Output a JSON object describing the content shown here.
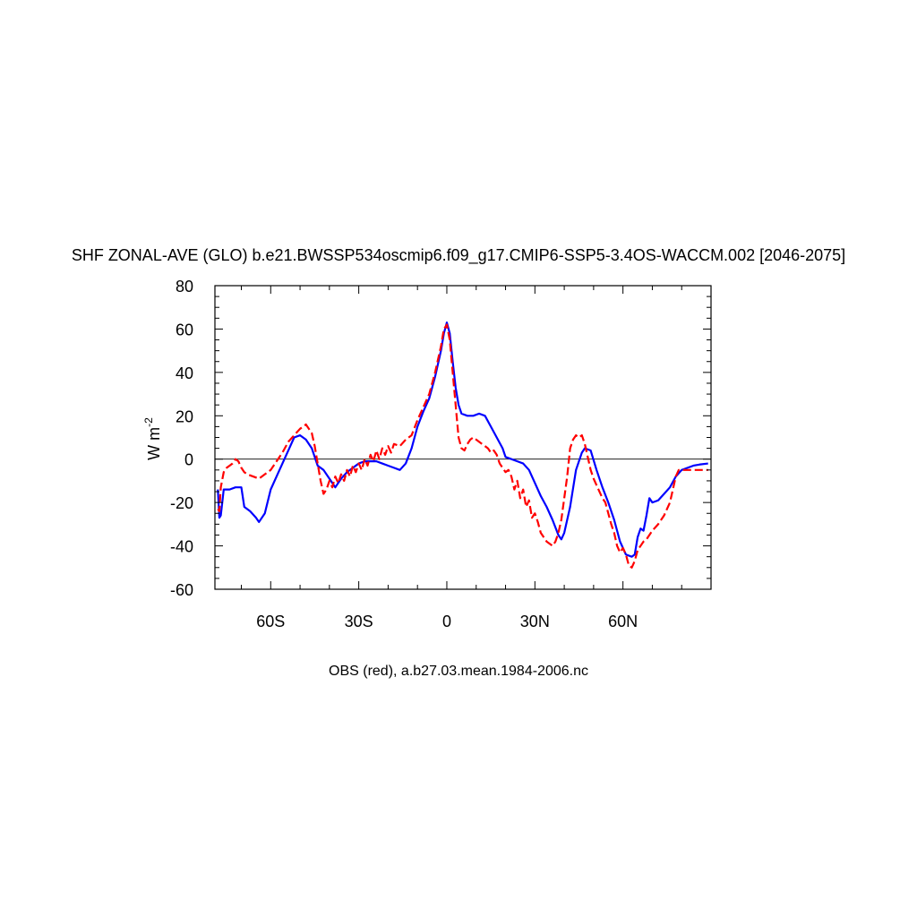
{
  "chart_data": {
    "type": "line",
    "title": "SHF ZONAL-AVE (GLO) b.e21.BWSSP534oscmip6.f09_g17.CMIP6-SSP5-3.4OS-WACCM.002 [2046-2075]",
    "ylabel_main": "W m",
    "ylabel_sup": "-2",
    "caption": "OBS (red), a.b27.03.mean.1984-2006.nc",
    "xlim": [
      -79,
      90
    ],
    "ylim": [
      -60,
      80
    ],
    "x_ticks": [
      {
        "value": -60,
        "label": "60S"
      },
      {
        "value": -30,
        "label": "30S"
      },
      {
        "value": 0,
        "label": "0"
      },
      {
        "value": 30,
        "label": "30N"
      },
      {
        "value": 60,
        "label": "60N"
      }
    ],
    "y_ticks": [
      {
        "value": 80,
        "label": "80"
      },
      {
        "value": 60,
        "label": "60"
      },
      {
        "value": 40,
        "label": "40"
      },
      {
        "value": 20,
        "label": "20"
      },
      {
        "value": 0,
        "label": "0"
      },
      {
        "value": -20,
        "label": "-20"
      },
      {
        "value": -40,
        "label": "-40"
      },
      {
        "value": -60,
        "label": "-60"
      }
    ],
    "zero_line": true,
    "series": [
      {
        "color": "#0000ff",
        "dash": "solid",
        "points": [
          [
            -78,
            -14
          ],
          [
            -77.5,
            -27
          ],
          [
            -77,
            -26
          ],
          [
            -76,
            -14
          ],
          [
            -74,
            -14
          ],
          [
            -72,
            -13
          ],
          [
            -70,
            -13
          ],
          [
            -69,
            -22
          ],
          [
            -67,
            -24
          ],
          [
            -65,
            -27
          ],
          [
            -64,
            -29
          ],
          [
            -62,
            -25
          ],
          [
            -60,
            -14
          ],
          [
            -58,
            -8
          ],
          [
            -56,
            -2
          ],
          [
            -54,
            4
          ],
          [
            -52,
            10
          ],
          [
            -50,
            11
          ],
          [
            -48,
            9
          ],
          [
            -46,
            5
          ],
          [
            -44,
            -3
          ],
          [
            -42,
            -5
          ],
          [
            -40,
            -9
          ],
          [
            -38,
            -13
          ],
          [
            -36,
            -9
          ],
          [
            -34,
            -6
          ],
          [
            -32,
            -4
          ],
          [
            -30,
            -2
          ],
          [
            -28,
            -1
          ],
          [
            -26,
            -1
          ],
          [
            -24,
            -1
          ],
          [
            -22,
            -2
          ],
          [
            -20,
            -3
          ],
          [
            -18,
            -4
          ],
          [
            -16,
            -5
          ],
          [
            -14,
            -2
          ],
          [
            -12,
            5
          ],
          [
            -10,
            15
          ],
          [
            -8,
            22
          ],
          [
            -6,
            28
          ],
          [
            -4,
            38
          ],
          [
            -2,
            50
          ],
          [
            -1,
            58
          ],
          [
            0,
            63
          ],
          [
            1,
            58
          ],
          [
            2,
            45
          ],
          [
            3,
            33
          ],
          [
            4,
            25
          ],
          [
            5,
            21
          ],
          [
            7,
            20
          ],
          [
            9,
            20
          ],
          [
            11,
            21
          ],
          [
            13,
            20
          ],
          [
            15,
            15
          ],
          [
            17,
            10
          ],
          [
            19,
            5
          ],
          [
            20,
            1
          ],
          [
            22,
            0
          ],
          [
            24,
            -1
          ],
          [
            26,
            -2
          ],
          [
            28,
            -5
          ],
          [
            30,
            -11
          ],
          [
            32,
            -17
          ],
          [
            34,
            -22
          ],
          [
            36,
            -28
          ],
          [
            38,
            -35
          ],
          [
            39,
            -37
          ],
          [
            40,
            -34
          ],
          [
            42,
            -22
          ],
          [
            44,
            -5
          ],
          [
            46,
            3
          ],
          [
            47,
            5
          ],
          [
            49,
            4
          ],
          [
            51,
            -5
          ],
          [
            53,
            -13
          ],
          [
            55,
            -20
          ],
          [
            57,
            -28
          ],
          [
            59,
            -38
          ],
          [
            61,
            -44
          ],
          [
            63,
            -45
          ],
          [
            64,
            -44
          ],
          [
            65,
            -36
          ],
          [
            66,
            -32
          ],
          [
            67,
            -33
          ],
          [
            68,
            -26
          ],
          [
            69,
            -18
          ],
          [
            70,
            -20
          ],
          [
            72,
            -19
          ],
          [
            74,
            -16
          ],
          [
            76,
            -13
          ],
          [
            78,
            -8
          ],
          [
            80,
            -5
          ],
          [
            82,
            -4
          ],
          [
            84,
            -3
          ],
          [
            86,
            -2.5
          ],
          [
            89,
            -2
          ]
        ]
      },
      {
        "color": "#ff0000",
        "dash": "dashed",
        "points": [
          [
            -78,
            -23
          ],
          [
            -77.5,
            -24
          ],
          [
            -77,
            -13
          ],
          [
            -76,
            -6
          ],
          [
            -75,
            -4
          ],
          [
            -74,
            -3
          ],
          [
            -73,
            -2
          ],
          [
            -72,
            0
          ],
          [
            -71,
            -1
          ],
          [
            -70,
            -4
          ],
          [
            -69,
            -6
          ],
          [
            -68,
            -7
          ],
          [
            -66,
            -8
          ],
          [
            -64,
            -9
          ],
          [
            -62,
            -7
          ],
          [
            -60,
            -5
          ],
          [
            -58,
            -1
          ],
          [
            -56,
            3
          ],
          [
            -54,
            8
          ],
          [
            -52,
            11
          ],
          [
            -50,
            14
          ],
          [
            -49,
            15
          ],
          [
            -48,
            16
          ],
          [
            -47,
            14
          ],
          [
            -46,
            12
          ],
          [
            -45,
            6
          ],
          [
            -44,
            -2
          ],
          [
            -43,
            -10
          ],
          [
            -42,
            -16
          ],
          [
            -41,
            -14
          ],
          [
            -40,
            -10
          ],
          [
            -39,
            -13
          ],
          [
            -38,
            -8
          ],
          [
            -37,
            -11
          ],
          [
            -36,
            -7
          ],
          [
            -35,
            -10
          ],
          [
            -34,
            -5
          ],
          [
            -33,
            -8
          ],
          [
            -32,
            -3
          ],
          [
            -31,
            -6
          ],
          [
            -30,
            -2
          ],
          [
            -29,
            -5
          ],
          [
            -28,
            0
          ],
          [
            -27,
            -3
          ],
          [
            -26,
            2
          ],
          [
            -25,
            -1
          ],
          [
            -24,
            4
          ],
          [
            -23,
            0
          ],
          [
            -22,
            5
          ],
          [
            -21,
            2
          ],
          [
            -20,
            6
          ],
          [
            -19,
            3
          ],
          [
            -18,
            7
          ],
          [
            -16,
            6
          ],
          [
            -14,
            9
          ],
          [
            -12,
            11
          ],
          [
            -10,
            18
          ],
          [
            -8,
            24
          ],
          [
            -6,
            30
          ],
          [
            -4,
            40
          ],
          [
            -2,
            52
          ],
          [
            -1,
            60
          ],
          [
            0,
            62
          ],
          [
            1,
            55
          ],
          [
            2,
            40
          ],
          [
            3,
            25
          ],
          [
            4,
            10
          ],
          [
            5,
            5
          ],
          [
            6,
            4
          ],
          [
            7,
            7
          ],
          [
            8,
            9
          ],
          [
            9,
            10
          ],
          [
            10,
            9
          ],
          [
            11,
            8
          ],
          [
            12,
            7
          ],
          [
            13,
            6
          ],
          [
            14,
            5
          ],
          [
            15,
            3
          ],
          [
            16,
            4
          ],
          [
            17,
            2
          ],
          [
            18,
            -2
          ],
          [
            19,
            -4
          ],
          [
            20,
            -6
          ],
          [
            21,
            -5
          ],
          [
            22,
            -8
          ],
          [
            23,
            -14
          ],
          [
            24,
            -10
          ],
          [
            25,
            -18
          ],
          [
            26,
            -14
          ],
          [
            27,
            -22
          ],
          [
            28,
            -19
          ],
          [
            29,
            -27
          ],
          [
            30,
            -25
          ],
          [
            31,
            -29
          ],
          [
            32,
            -34
          ],
          [
            33,
            -36
          ],
          [
            34,
            -38
          ],
          [
            35,
            -39
          ],
          [
            36,
            -40
          ],
          [
            37,
            -38
          ],
          [
            38,
            -34
          ],
          [
            39,
            -28
          ],
          [
            40,
            -18
          ],
          [
            41,
            -8
          ],
          [
            42,
            5
          ],
          [
            43,
            9
          ],
          [
            44,
            11
          ],
          [
            45,
            10
          ],
          [
            46,
            11
          ],
          [
            47,
            7
          ],
          [
            48,
            1
          ],
          [
            49,
            -5
          ],
          [
            50,
            -9
          ],
          [
            51,
            -12
          ],
          [
            52,
            -15
          ],
          [
            53,
            -18
          ],
          [
            54,
            -20
          ],
          [
            55,
            -25
          ],
          [
            56,
            -30
          ],
          [
            57,
            -34
          ],
          [
            58,
            -40
          ],
          [
            59,
            -43
          ],
          [
            60,
            -41
          ],
          [
            61,
            -44
          ],
          [
            62,
            -49
          ],
          [
            63,
            -50
          ],
          [
            64,
            -47
          ],
          [
            65,
            -42
          ],
          [
            66,
            -40
          ],
          [
            67,
            -38
          ],
          [
            68,
            -37
          ],
          [
            70,
            -33
          ],
          [
            72,
            -30
          ],
          [
            74,
            -26
          ],
          [
            76,
            -20
          ],
          [
            77,
            -14
          ],
          [
            78,
            -8
          ],
          [
            79,
            -5
          ],
          [
            82,
            -5
          ],
          [
            86,
            -5
          ],
          [
            89,
            -5
          ]
        ]
      }
    ]
  }
}
